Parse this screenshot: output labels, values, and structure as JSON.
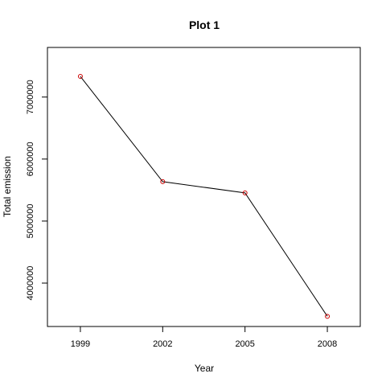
{
  "chart_data": {
    "type": "line",
    "title": "Plot 1",
    "xlabel": "Year",
    "ylabel": "Total emission",
    "x": [
      1999,
      2002,
      2005,
      2008
    ],
    "series": [
      {
        "values": [
          7332967,
          5635780,
          5454703,
          3464206
        ]
      }
    ],
    "x_ticks": [
      "1999",
      "2002",
      "2005",
      "2008"
    ],
    "y_ticks": [
      "4000000",
      "5000000",
      "6000000",
      "7000000"
    ],
    "xlim": [
      1997.8,
      2009.2
    ],
    "ylim": [
      3300000,
      7800000
    ],
    "grid": false,
    "line_color": "#000000",
    "point_color": "#cc0000",
    "marker": "open-circle"
  }
}
